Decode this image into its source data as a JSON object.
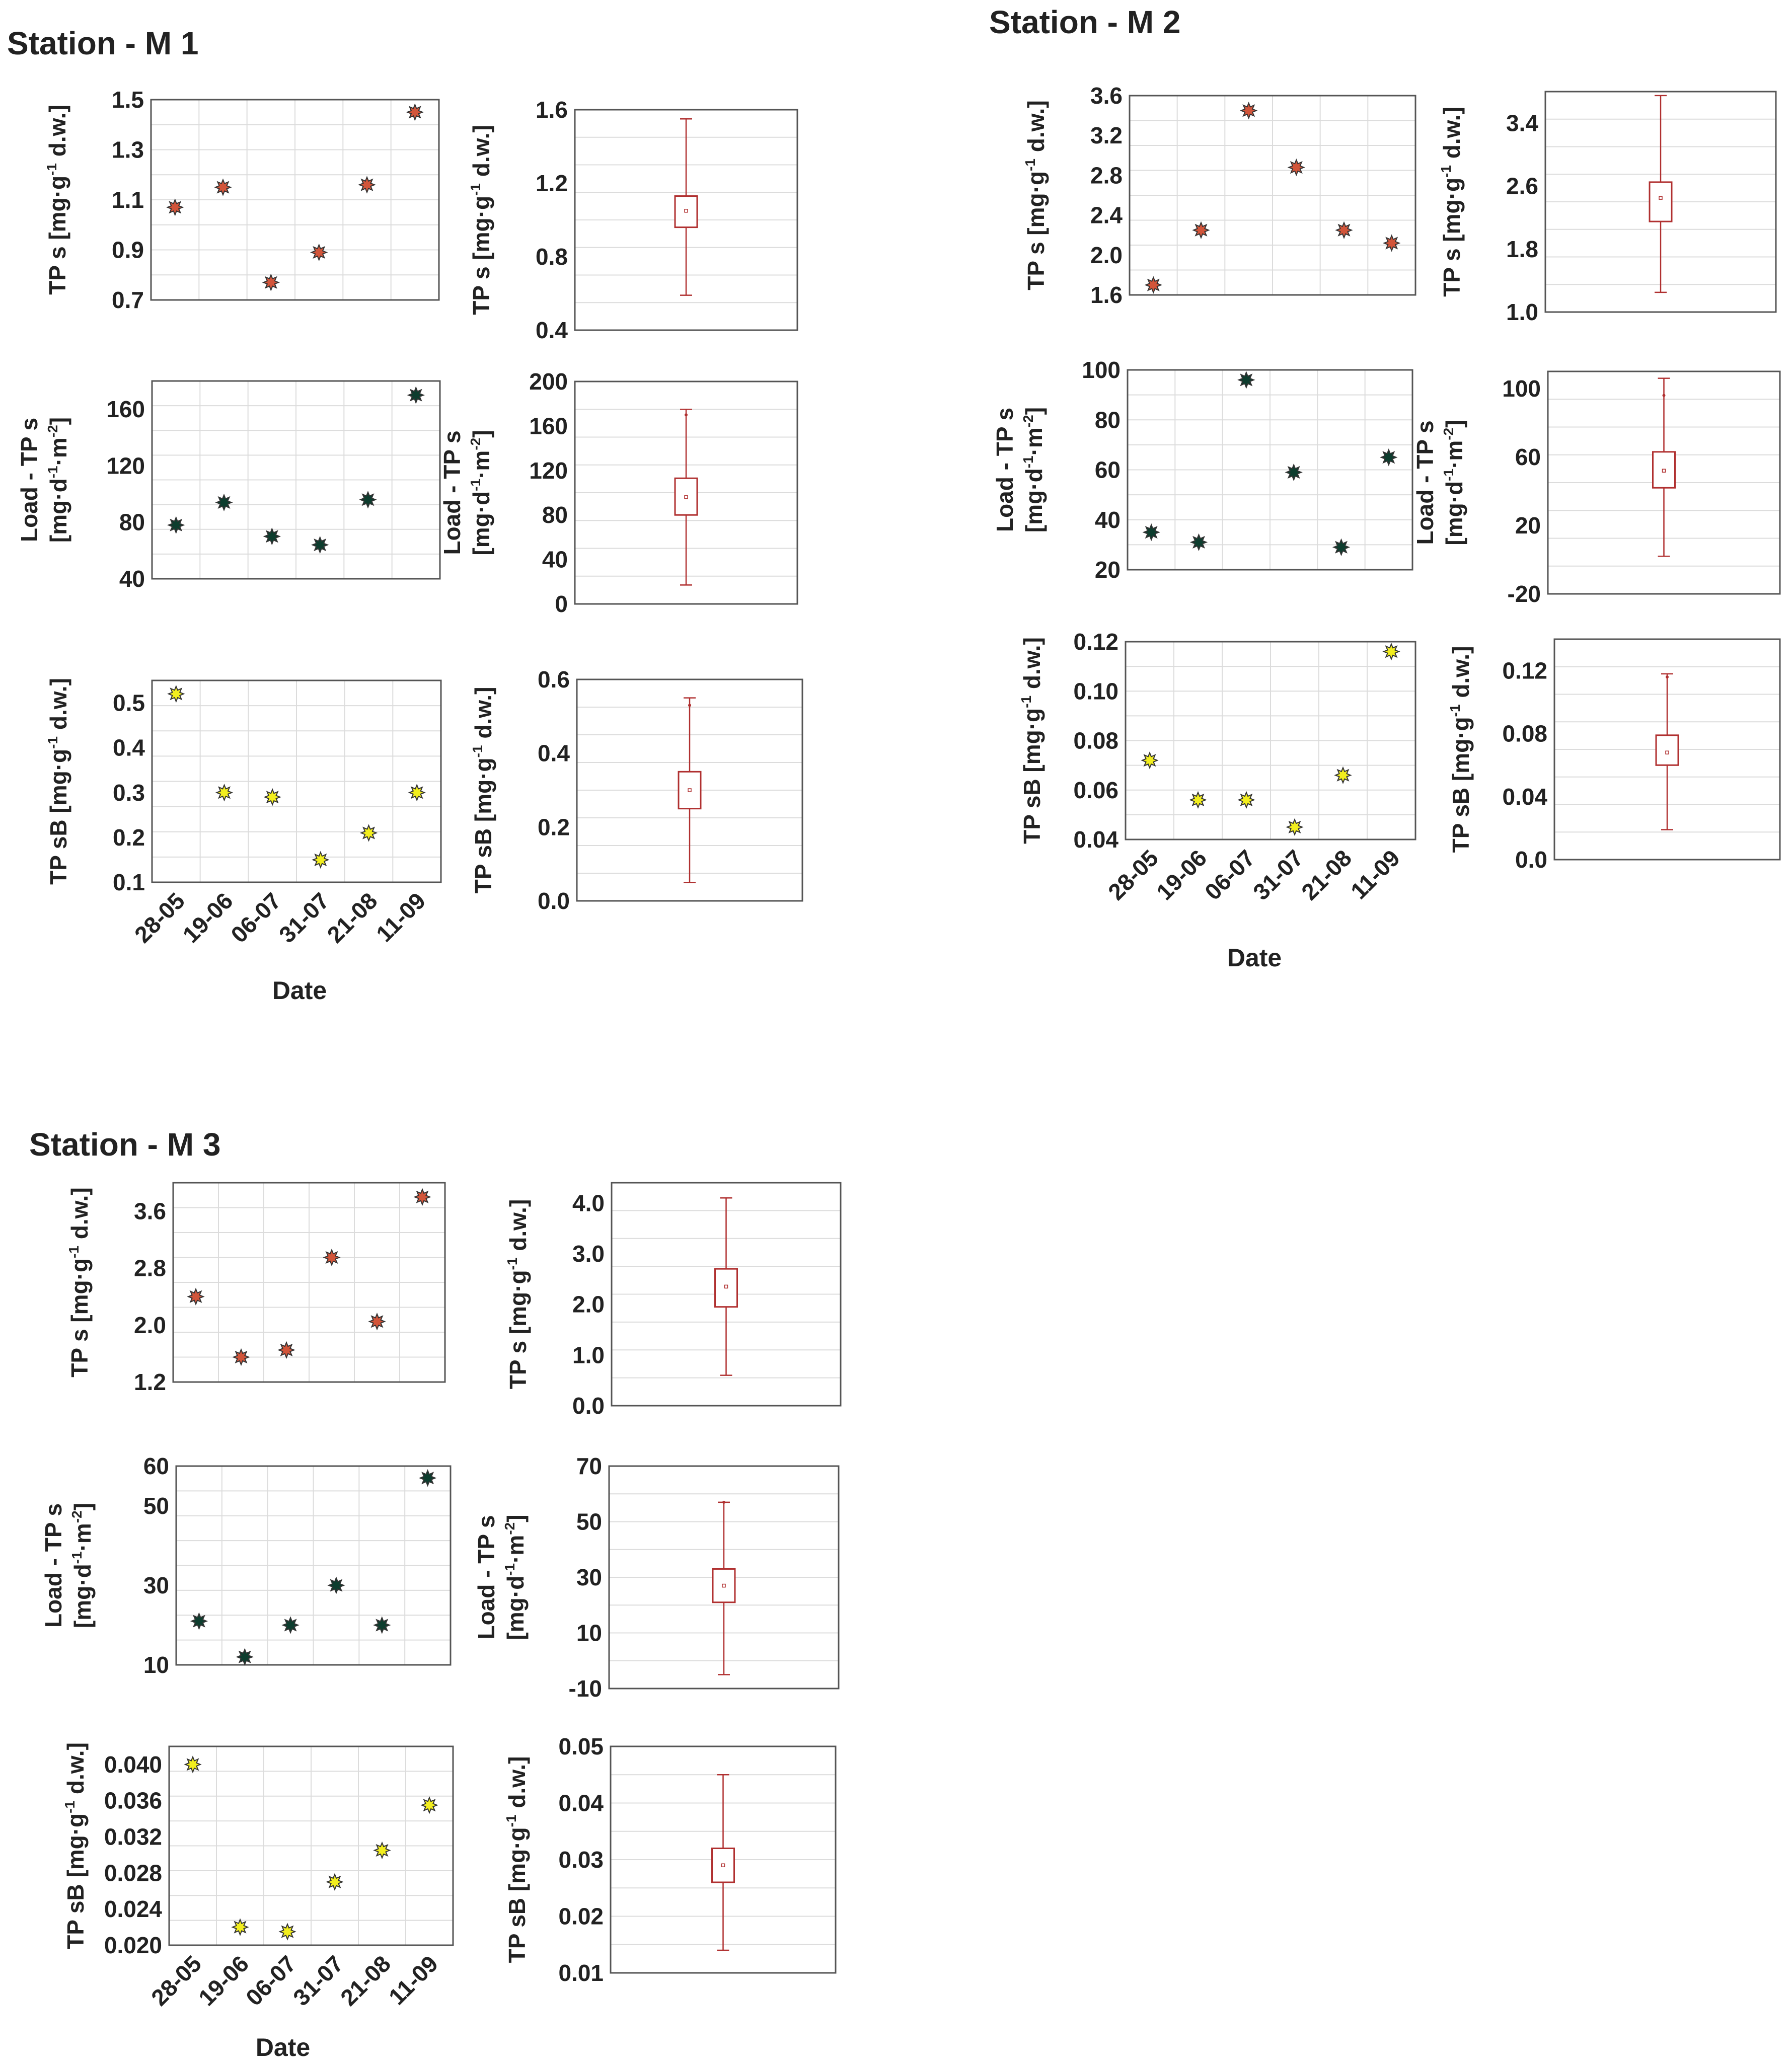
{
  "figure": {
    "date_label": "Date",
    "colors": {
      "tp": "#d2553a",
      "load": "#0d3d2e",
      "tpsb": "#f2ee1e",
      "box": "#b03030",
      "grid": "#dcdcdc",
      "frame": "#555555",
      "text": "#222222"
    }
  },
  "stations": [
    {
      "title": "Station - M 1",
      "rows": []
    },
    {
      "title": "Station - M 2",
      "rows": []
    },
    {
      "title": "Station - M 3",
      "rows": []
    }
  ],
  "chart_data": [
    {
      "id": "m1_tps_scatter",
      "station": "Station - M 1",
      "type": "scatter",
      "title": "",
      "xlabel": "",
      "ylabel": "TP s [mg·g-1 d.w.]",
      "ylabel_parts": {
        "main": "TP s [mg·g",
        "sup": "-1",
        "rest": " d.w.]"
      },
      "categories": [
        "28-05",
        "19-06",
        "06-07",
        "31-07",
        "21-08",
        "11-09"
      ],
      "values": [
        1.07,
        1.15,
        0.77,
        0.89,
        1.16,
        1.45
      ],
      "ylim": [
        0.7,
        1.5
      ],
      "yticks": [
        "0.7",
        "0.9",
        "1.1",
        "1.3",
        "1.5"
      ],
      "ytick_values": [
        0.7,
        0.9,
        1.1,
        1.3,
        1.5
      ],
      "grid": true,
      "series_color": "tp"
    },
    {
      "id": "m1_tps_box",
      "station": "Station - M 1",
      "type": "box",
      "ylabel": "TP s [mg·g-1 d.w.]",
      "ylabel_parts": {
        "main": "TP s [mg·g",
        "sup": "-1",
        "rest": " d.w.]"
      },
      "box": {
        "min": 0.59,
        "q1": 0.96,
        "median": 1.05,
        "q3": 1.13,
        "max": 1.55,
        "mean": 1.05
      },
      "ylim": [
        0.4,
        1.6
      ],
      "yticks": [
        "0.4",
        "0.8",
        "1.2",
        "1.6"
      ],
      "ytick_values": [
        0.4,
        0.8,
        1.2,
        1.6
      ],
      "grid": true
    },
    {
      "id": "m1_load_scatter",
      "station": "Station - M 1",
      "type": "scatter",
      "ylabel": "Load - TP s [mg·d-1·m-2]",
      "ylabel_lines": [
        {
          "main": "Load - TP s"
        },
        {
          "main": "[mg·d",
          "sup": "-1",
          "rest": "·m",
          "sup2": "-2",
          "rest2": "]"
        }
      ],
      "categories": [
        "28-05",
        "19-06",
        "06-07",
        "31-07",
        "21-08",
        "11-09"
      ],
      "values": [
        78,
        94,
        70,
        64,
        96,
        170
      ],
      "ylim": [
        40,
        180
      ],
      "yticks": [
        "40",
        "80",
        "120",
        "160"
      ],
      "ytick_values": [
        40,
        80,
        120,
        160
      ],
      "grid": true,
      "series_color": "load"
    },
    {
      "id": "m1_load_box",
      "station": "Station - M 1",
      "type": "box",
      "ylabel": "Load - TP s [mg·d-1·m-2]",
      "ylabel_lines": [
        {
          "main": "Load - TP s"
        },
        {
          "main": "[mg·d",
          "sup": "-1",
          "rest": "·m",
          "sup2": "-2",
          "rest2": "]"
        }
      ],
      "box": {
        "min": 17,
        "q1": 80,
        "median": 96,
        "q3": 113,
        "max": 175,
        "mean": 96,
        "outlier": 170
      },
      "ylim": [
        0,
        200
      ],
      "yticks": [
        "0",
        "40",
        "80",
        "120",
        "160",
        "200"
      ],
      "ytick_values": [
        0,
        40,
        80,
        120,
        160,
        200
      ],
      "grid": true
    },
    {
      "id": "m1_tpsb_scatter",
      "station": "Station - M 1",
      "type": "scatter",
      "ylabel": "TP sB [mg·g-1 d.w.]",
      "ylabel_parts": {
        "main": "TP sB [mg·g",
        "sup": "-1",
        "rest": " d.w.]"
      },
      "categories": [
        "28-05",
        "19-06",
        "06-07",
        "31-07",
        "21-08",
        "11-09"
      ],
      "values": [
        0.52,
        0.3,
        0.29,
        0.15,
        0.21,
        0.3
      ],
      "ylim": [
        0.1,
        0.55
      ],
      "yticks": [
        "0.1",
        "0.2",
        "0.3",
        "0.4",
        "0.5"
      ],
      "ytick_values": [
        0.1,
        0.2,
        0.3,
        0.4,
        0.5
      ],
      "grid": true,
      "series_color": "tpsb"
    },
    {
      "id": "m1_tpsb_box",
      "station": "Station - M 1",
      "type": "box",
      "ylabel": "TP sB [mg·g-1 d.w.]",
      "ylabel_parts": {
        "main": "TP sB [mg·g",
        "sup": "-1",
        "rest": " d.w.]"
      },
      "box": {
        "min": 0.05,
        "q1": 0.25,
        "median": 0.3,
        "q3": 0.35,
        "max": 0.55,
        "mean": 0.3,
        "outlier": 0.53
      },
      "ylim": [
        0.0,
        0.6
      ],
      "yticks": [
        "0.0",
        "0.2",
        "0.4",
        "0.6"
      ],
      "ytick_values": [
        0.0,
        0.2,
        0.4,
        0.6
      ],
      "grid": true
    },
    {
      "id": "m2_tps_scatter",
      "station": "Station - M 2",
      "type": "scatter",
      "ylabel": "TP s [mg·g-1 d.w.]",
      "ylabel_parts": {
        "main": "TP s [mg·g",
        "sup": "-1",
        "rest": " d.w.]"
      },
      "categories": [
        "28-05",
        "19-06",
        "06-07",
        "31-07",
        "21-08",
        "11-09"
      ],
      "values": [
        1.7,
        2.25,
        3.45,
        2.88,
        2.25,
        2.12
      ],
      "ylim": [
        1.6,
        3.6
      ],
      "yticks": [
        "1.6",
        "2.0",
        "2.4",
        "2.8",
        "3.2",
        "3.6"
      ],
      "ytick_values": [
        1.6,
        2.0,
        2.4,
        2.8,
        3.2,
        3.6
      ],
      "grid": true,
      "series_color": "tp"
    },
    {
      "id": "m2_tps_box",
      "station": "Station - M 2",
      "type": "box",
      "ylabel": "TP s [mg·g-1 d.w.]",
      "ylabel_parts": {
        "main": "TP s [mg·g",
        "sup": "-1",
        "rest": " d.w.]"
      },
      "box": {
        "min": 1.25,
        "q1": 2.15,
        "median": 2.45,
        "q3": 2.65,
        "max": 3.75,
        "mean": 2.45
      },
      "ylim": [
        1.0,
        3.8
      ],
      "yticks": [
        "1.0",
        "1.8",
        "2.6",
        "3.4"
      ],
      "ytick_values": [
        1.0,
        1.8,
        2.6,
        3.4
      ],
      "grid": true
    },
    {
      "id": "m2_load_scatter",
      "station": "Station - M 2",
      "type": "scatter",
      "ylabel": "Load - TP s [mg·d-1·m-2]",
      "ylabel_lines": [
        {
          "main": "Load - TP s"
        },
        {
          "main": "[mg·d",
          "sup": "-1",
          "rest": "·m",
          "sup2": "-2",
          "rest2": "]"
        }
      ],
      "categories": [
        "28-05",
        "19-06",
        "06-07",
        "31-07",
        "21-08",
        "11-09"
      ],
      "values": [
        35,
        31,
        96,
        59,
        29,
        65
      ],
      "ylim": [
        20,
        100
      ],
      "yticks": [
        "20",
        "40",
        "60",
        "80",
        "100"
      ],
      "ytick_values": [
        20,
        40,
        60,
        80,
        100
      ],
      "grid": true,
      "series_color": "load"
    },
    {
      "id": "m2_load_box",
      "station": "Station - M 2",
      "type": "box",
      "ylabel": "Load - TP s [mg·d-1·m-2]",
      "ylabel_lines": [
        {
          "main": "Load - TP s"
        },
        {
          "main": "[mg·d",
          "sup": "-1",
          "rest": "·m",
          "sup2": "-2",
          "rest2": "]"
        }
      ],
      "box": {
        "min": 2,
        "q1": 42,
        "median": 52,
        "q3": 63,
        "max": 106,
        "mean": 52,
        "outlier": 96
      },
      "ylim": [
        -20,
        110
      ],
      "yticks": [
        "-20",
        "20",
        "60",
        "100"
      ],
      "ytick_values": [
        -20,
        20,
        60,
        100
      ],
      "grid": true
    },
    {
      "id": "m2_tpsb_scatter",
      "station": "Station - M 2",
      "type": "scatter",
      "ylabel": "TP sB [mg·g-1 d.w.]",
      "ylabel_parts": {
        "main": "TP sB [mg·g",
        "sup": "-1",
        "rest": " d.w.]"
      },
      "categories": [
        "28-05",
        "19-06",
        "06-07",
        "31-07",
        "21-08",
        "11-09"
      ],
      "values": [
        0.072,
        0.056,
        0.056,
        0.045,
        0.066,
        0.116
      ],
      "ylim": [
        0.04,
        0.12
      ],
      "yticks": [
        "0.04",
        "0.06",
        "0.08",
        "0.10",
        "0.12"
      ],
      "ytick_values": [
        0.04,
        0.06,
        0.08,
        0.1,
        0.12
      ],
      "grid": true,
      "series_color": "tpsb"
    },
    {
      "id": "m2_tpsb_box",
      "station": "Station - M 2",
      "type": "box",
      "ylabel": "TP sB [mg·g-1 d.w.]",
      "ylabel_parts": {
        "main": "TP sB [mg·g",
        "sup": "-1",
        "rest": " d.w.]"
      },
      "box": {
        "min": 0.019,
        "q1": 0.06,
        "median": 0.068,
        "q3": 0.079,
        "max": 0.118,
        "mean": 0.068,
        "outlier": 0.116
      },
      "ylim": [
        0.0,
        0.14
      ],
      "yticks": [
        "0.0",
        "0.04",
        "0.08",
        "0.12"
      ],
      "ytick_values": [
        0.0,
        0.04,
        0.08,
        0.12
      ],
      "grid": true
    },
    {
      "id": "m3_tps_scatter",
      "station": "Station - M 3",
      "type": "scatter",
      "ylabel": "TP s [mg·g-1 d.w.]",
      "ylabel_parts": {
        "main": "TP s [mg·g",
        "sup": "-1",
        "rest": " d.w.]"
      },
      "categories": [
        "28-05",
        "19-06",
        "06-07",
        "31-07",
        "21-08",
        "11-09"
      ],
      "values": [
        2.4,
        1.55,
        1.65,
        2.95,
        2.05,
        3.8
      ],
      "ylim": [
        1.2,
        4.0
      ],
      "yticks": [
        "1.2",
        "2.0",
        "2.8",
        "3.6"
      ],
      "ytick_values": [
        1.2,
        2.0,
        2.8,
        3.6
      ],
      "grid": true,
      "series_color": "tp"
    },
    {
      "id": "m3_tps_box",
      "station": "Station - M 3",
      "type": "box",
      "ylabel": "TP s [mg·g-1 d.w.]",
      "ylabel_parts": {
        "main": "TP s [mg·g",
        "sup": "-1",
        "rest": " d.w.]"
      },
      "box": {
        "min": 0.6,
        "q1": 1.95,
        "median": 2.35,
        "q3": 2.7,
        "max": 4.1,
        "mean": 2.35
      },
      "ylim": [
        0.0,
        4.4
      ],
      "yticks": [
        "0.0",
        "1.0",
        "2.0",
        "3.0",
        "4.0"
      ],
      "ytick_values": [
        0.0,
        1.0,
        2.0,
        3.0,
        4.0
      ],
      "grid": true
    },
    {
      "id": "m3_load_scatter",
      "station": "Station - M 3",
      "type": "scatter",
      "ylabel": "Load - TP s [mg·d-1·m-2]",
      "ylabel_lines": [
        {
          "main": "Load - TP s"
        },
        {
          "main": "[mg·d",
          "sup": "-1",
          "rest": "·m",
          "sup2": "-2",
          "rest2": "]"
        }
      ],
      "categories": [
        "28-05",
        "19-06",
        "06-07",
        "31-07",
        "21-08",
        "11-09"
      ],
      "values": [
        21,
        12,
        20,
        30,
        20,
        57
      ],
      "ylim": [
        10,
        60
      ],
      "yticks": [
        "10",
        "30",
        "50",
        "60"
      ],
      "ytick_values": [
        10,
        30,
        50,
        60
      ],
      "grid": true,
      "series_color": "load"
    },
    {
      "id": "m3_load_box",
      "station": "Station - M 3",
      "type": "box",
      "ylabel": "Load - TP s [mg·d-1·m-2]",
      "ylabel_lines": [
        {
          "main": "Load - TP s"
        },
        {
          "main": "[mg·d",
          "sup": "-1",
          "rest": "·m",
          "sup2": "-2",
          "rest2": "]"
        }
      ],
      "box": {
        "min": -5,
        "q1": 21,
        "median": 27,
        "q3": 33,
        "max": 57,
        "mean": 27,
        "outlier": 57
      },
      "ylim": [
        -10,
        70
      ],
      "yticks": [
        "-10",
        "10",
        "30",
        "50",
        "70"
      ],
      "ytick_values": [
        -10,
        10,
        30,
        50,
        70
      ],
      "grid": true
    },
    {
      "id": "m3_tpsb_scatter",
      "station": "Station - M 3",
      "type": "scatter",
      "ylabel": "TP sB [mg·g-1 d.w.]",
      "ylabel_parts": {
        "main": "TP sB [mg·g",
        "sup": "-1",
        "rest": " d.w.]"
      },
      "categories": [
        "28-05",
        "19-06",
        "06-07",
        "31-07",
        "21-08",
        "11-09"
      ],
      "values": [
        0.04,
        0.022,
        0.0215,
        0.027,
        0.0305,
        0.0355
      ],
      "ylim": [
        0.02,
        0.042
      ],
      "yticks": [
        "0.020",
        "0.024",
        "0.028",
        "0.032",
        "0.036",
        "0.040"
      ],
      "ytick_values": [
        0.02,
        0.024,
        0.028,
        0.032,
        0.036,
        0.04
      ],
      "grid": true,
      "series_color": "tpsb"
    },
    {
      "id": "m3_tpsb_box",
      "station": "Station - M 3",
      "type": "box",
      "ylabel": "TP sB [mg·g-1 d.w.]",
      "ylabel_parts": {
        "main": "TP sB [mg·g",
        "sup": "-1",
        "rest": " d.w.]"
      },
      "box": {
        "min": 0.014,
        "q1": 0.026,
        "median": 0.029,
        "q3": 0.032,
        "max": 0.045,
        "mean": 0.029
      },
      "ylim": [
        0.01,
        0.05
      ],
      "yticks": [
        "0.01",
        "0.02",
        "0.03",
        "0.04",
        "0.05"
      ],
      "ytick_values": [
        0.01,
        0.02,
        0.03,
        0.04,
        0.05
      ],
      "grid": true
    }
  ]
}
